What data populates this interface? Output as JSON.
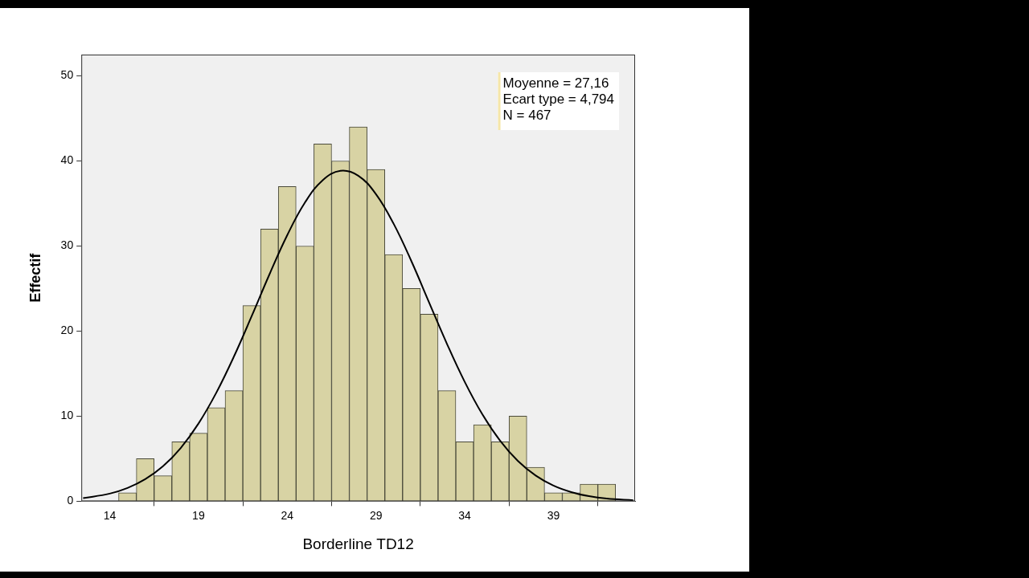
{
  "chart_data": {
    "type": "histogram",
    "x_label": "Borderline TD12",
    "y_label": "Effectif",
    "bins": [
      14.5,
      15.5,
      16.5,
      17.5,
      18.5,
      19.5,
      20.5,
      21.5,
      22.5,
      23.5,
      24.5,
      25.5,
      26.5,
      27.5,
      28.5,
      29.5,
      30.5,
      31.5,
      32.5,
      33.5,
      34.5,
      35.5,
      36.5,
      37.5,
      38.5,
      39.5,
      40.5,
      41.5,
      42.5
    ],
    "values": [
      1,
      5,
      3,
      7,
      8,
      11,
      13,
      23,
      32,
      37,
      30,
      42,
      40,
      44,
      39,
      29,
      25,
      22,
      13,
      7,
      9,
      7,
      10,
      4,
      1,
      1,
      2,
      2
    ],
    "color": "#d8d3a4",
    "xlim": [
      12.4,
      43.6
    ],
    "xticks": [
      14,
      19,
      24,
      29,
      34,
      39
    ],
    "ylim": [
      0,
      52.5
    ],
    "yticks": [
      0,
      10,
      20,
      30,
      40,
      50
    ],
    "grid": false,
    "annotations": [
      "Moyenne = 27,16",
      "Ecart type = 4,794",
      "N = 467"
    ],
    "curve": {
      "x": [
        12.5,
        14,
        15,
        16,
        17,
        18,
        19,
        20,
        21,
        22,
        23,
        24,
        25,
        26,
        27,
        28,
        29,
        30,
        31,
        32,
        33,
        34,
        35,
        36,
        37,
        38,
        39,
        40,
        41,
        42,
        43.5
      ],
      "values": [
        0.36,
        0.9,
        1.56,
        2.59,
        4.11,
        6.26,
        9.13,
        12.74,
        17.02,
        21.77,
        26.67,
        31.27,
        35.11,
        37.74,
        38.84,
        38.27,
        36.1,
        32.6,
        28.2,
        23.34,
        18.5,
        14.04,
        10.2,
        7.1,
        4.73,
        3.02,
        1.84,
        1.08,
        0.6,
        0.32,
        0.12
      ],
      "color": "#000000"
    }
  }
}
